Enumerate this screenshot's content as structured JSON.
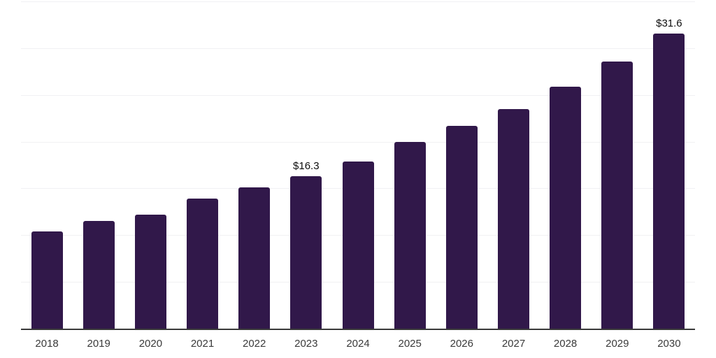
{
  "chart_data": {
    "type": "bar",
    "categories": [
      "2018",
      "2019",
      "2020",
      "2021",
      "2022",
      "2023",
      "2024",
      "2025",
      "2026",
      "2027",
      "2028",
      "2029",
      "2030"
    ],
    "values": [
      10.4,
      11.5,
      12.2,
      13.9,
      15.1,
      16.3,
      17.9,
      20.0,
      21.7,
      23.5,
      25.9,
      28.6,
      31.6
    ],
    "data_labels": [
      null,
      null,
      null,
      null,
      null,
      "$16.3",
      null,
      null,
      null,
      null,
      null,
      null,
      "$31.6"
    ],
    "title": "",
    "xlabel": "",
    "ylabel": "",
    "ylim": [
      0,
      35
    ],
    "gridline_step": 5,
    "grid": true,
    "legend_position": "none",
    "y_tick_labels_visible": false,
    "colors": {
      "bar": "#31184A",
      "axis_line": "#3a3a3a",
      "gridline": "#f1f1f3",
      "tick_label": "#3a3a3a",
      "data_label": "#0d0d0d",
      "background": "#ffffff"
    }
  }
}
